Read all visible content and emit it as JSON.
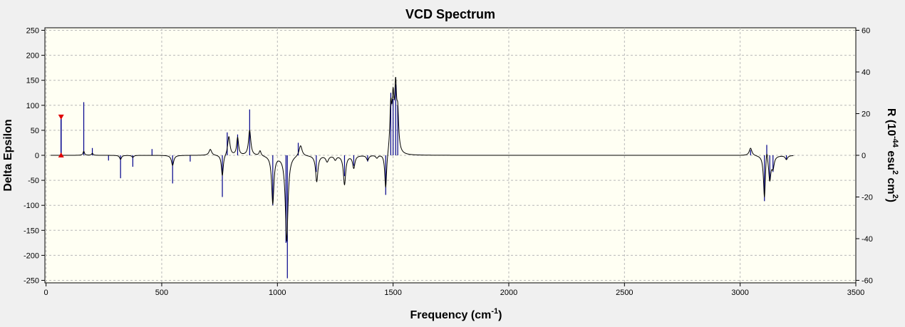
{
  "colors": {
    "background": "#f0f0f0",
    "plot_background": "#fffff3",
    "grid": "#b8b8b8",
    "spectrum_line": "#000000",
    "stick_color": "#00008b",
    "marker_color": "#e00000"
  },
  "chart_data": {
    "type": "line",
    "title": "VCD Spectrum",
    "xlabel": "Frequency (cm",
    "xlabel_sup": "-1",
    "xlabel_end": ")",
    "ylabel": "Delta Epsilon",
    "y2label_base": "R (10",
    "y2label_sup": "-44",
    "y2label_mid": " esu",
    "y2label_sup2": "2",
    "y2label_mid2": " cm",
    "y2label_sup3": "2",
    "y2label_end": ")",
    "xlim": [
      -5,
      3500
    ],
    "ylim": [
      -255,
      255
    ],
    "y2lim": [
      -61.2,
      61.2
    ],
    "x_ticks": [
      "0",
      "500",
      "1000",
      "1500",
      "2000",
      "2500",
      "3000",
      "3500"
    ],
    "y_ticks": [
      "250",
      "200",
      "150",
      "100",
      "50",
      "0",
      "-50",
      "-100",
      "-150",
      "-200",
      "-250"
    ],
    "y2_ticks": [
      "60",
      "40",
      "20",
      "0",
      "-20",
      "-40",
      "-60"
    ],
    "grid": true,
    "sticks": [
      {
        "x": 163,
        "r": 25.5
      },
      {
        "x": 200,
        "r": 3.5
      },
      {
        "x": 270,
        "r": -2.5
      },
      {
        "x": 322,
        "r": -11
      },
      {
        "x": 375,
        "r": -5.5
      },
      {
        "x": 458,
        "r": 3
      },
      {
        "x": 547,
        "r": -13.5
      },
      {
        "x": 623,
        "r": -3
      },
      {
        "x": 762,
        "r": -20
      },
      {
        "x": 783,
        "r": 11
      },
      {
        "x": 828,
        "r": 10
      },
      {
        "x": 880,
        "r": 22
      },
      {
        "x": 980,
        "r": -24
      },
      {
        "x": 1037,
        "r": -42
      },
      {
        "x": 1043,
        "r": -59
      },
      {
        "x": 1090,
        "r": 6
      },
      {
        "x": 1168,
        "r": -8
      },
      {
        "x": 1290,
        "r": -10
      },
      {
        "x": 1330,
        "r": -5
      },
      {
        "x": 1390,
        "r": -3
      },
      {
        "x": 1468,
        "r": -19
      },
      {
        "x": 1490,
        "r": 30
      },
      {
        "x": 1500,
        "r": 27
      },
      {
        "x": 1511,
        "r": 34
      },
      {
        "x": 1520,
        "r": 24
      },
      {
        "x": 3045,
        "r": 2.5
      },
      {
        "x": 3105,
        "r": -22
      },
      {
        "x": 3115,
        "r": 5
      },
      {
        "x": 3128,
        "r": -12
      },
      {
        "x": 3142,
        "r": -8
      },
      {
        "x": 3200,
        "r": -2
      }
    ],
    "spectrum_peaks": [
      {
        "x": 163,
        "a": 8,
        "w": 4
      },
      {
        "x": 200,
        "a": 4,
        "w": 4
      },
      {
        "x": 322,
        "a": -8,
        "w": 5
      },
      {
        "x": 375,
        "a": -4,
        "w": 5
      },
      {
        "x": 547,
        "a": -20,
        "w": 6
      },
      {
        "x": 710,
        "a": 12,
        "w": 7
      },
      {
        "x": 762,
        "a": -42,
        "w": 5
      },
      {
        "x": 790,
        "a": 38,
        "w": 6
      },
      {
        "x": 828,
        "a": 35,
        "w": 5
      },
      {
        "x": 880,
        "a": 50,
        "w": 6
      },
      {
        "x": 925,
        "a": 10,
        "w": 5
      },
      {
        "x": 980,
        "a": -95,
        "w": 6
      },
      {
        "x": 1040,
        "a": -170,
        "w": 7
      },
      {
        "x": 1100,
        "a": 22,
        "w": 8
      },
      {
        "x": 1170,
        "a": -52,
        "w": 6
      },
      {
        "x": 1215,
        "a": -12,
        "w": 7
      },
      {
        "x": 1250,
        "a": -8,
        "w": 6
      },
      {
        "x": 1290,
        "a": -58,
        "w": 6
      },
      {
        "x": 1330,
        "a": -25,
        "w": 6
      },
      {
        "x": 1390,
        "a": -10,
        "w": 6
      },
      {
        "x": 1430,
        "a": -6,
        "w": 6
      },
      {
        "x": 1468,
        "a": -72,
        "w": 5
      },
      {
        "x": 1490,
        "a": 90,
        "w": 5
      },
      {
        "x": 1500,
        "a": 95,
        "w": 5
      },
      {
        "x": 1511,
        "a": 120,
        "w": 5
      },
      {
        "x": 1520,
        "a": 70,
        "w": 5
      },
      {
        "x": 3045,
        "a": 15,
        "w": 7
      },
      {
        "x": 3105,
        "a": -85,
        "w": 5
      },
      {
        "x": 3115,
        "a": 28,
        "w": 5
      },
      {
        "x": 3128,
        "a": -48,
        "w": 6
      },
      {
        "x": 3142,
        "a": -22,
        "w": 6
      },
      {
        "x": 3200,
        "a": -8,
        "w": 6
      }
    ],
    "spectrum_range": [
      20,
      3230
    ],
    "marker": {
      "x": 65,
      "r_top": 18.5,
      "r_bottom": 0
    }
  }
}
